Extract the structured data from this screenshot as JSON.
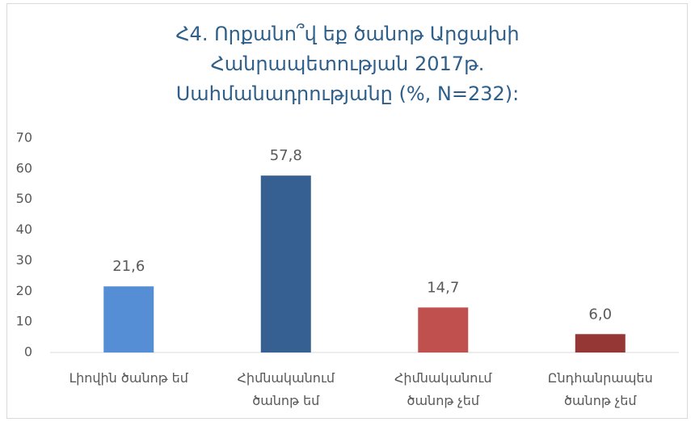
{
  "chart_data": {
    "type": "bar",
    "title": "Հ4. Որքանո՞վ եք ծանոթ Արցախի Հանրապետության 2017թ. Սահմանադրությանը (%, N=232):",
    "categories": [
      "Լիովին ծանոթ եմ",
      "Հիմնականում ծանոթ եմ",
      "Հիմնականում ծանոթ չեմ",
      "Ընդհանրապես ծանոթ չեմ"
    ],
    "values": [
      21.6,
      57.8,
      14.7,
      6.0
    ],
    "value_labels": [
      "21,6",
      "57,8",
      "14,7",
      "6,0"
    ],
    "colors": [
      "#558ed5",
      "#376092",
      "#c0504d",
      "#953735"
    ],
    "ylim": [
      0,
      70
    ],
    "yticks": [
      0,
      10,
      20,
      30,
      40,
      50,
      60,
      70
    ],
    "grid": false
  }
}
